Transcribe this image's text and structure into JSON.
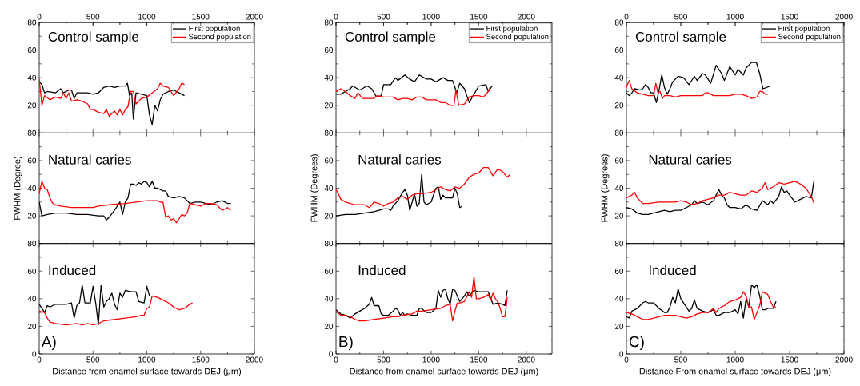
{
  "chart_data": [
    {
      "type": "line",
      "title": "Control sample",
      "xlim": [
        0,
        2000
      ],
      "xticks": [
        0,
        500,
        1000,
        1500,
        2000
      ],
      "x2lim": [
        0,
        2000
      ],
      "x2ticks": [
        0,
        500,
        1000,
        1500,
        2000
      ],
      "ylim": [
        0,
        80
      ],
      "yticks": [
        20,
        40,
        60,
        80
      ],
      "tick_labels": "y",
      "legend": "top right",
      "line_style": "solid",
      "series": [
        {
          "name": "First population",
          "color": "#000000",
          "x": [
            0,
            25,
            50,
            75,
            150,
            200,
            225,
            275,
            300,
            325,
            350,
            400,
            450,
            500,
            550,
            600,
            650,
            700,
            750,
            800,
            820,
            840,
            860,
            875,
            900,
            950,
            1000,
            1025,
            1050,
            1075,
            1100,
            1125,
            1150,
            1200,
            1250,
            1300,
            1350
          ],
          "values": [
            37,
            35,
            29,
            30,
            29,
            32,
            29,
            31,
            31,
            25,
            29,
            29,
            29,
            28,
            29,
            33,
            34,
            33,
            34,
            34,
            36,
            27,
            29,
            10,
            29,
            28,
            27,
            13,
            6,
            20,
            16,
            24,
            28,
            30,
            31,
            29,
            27
          ]
        },
        {
          "name": "Second population",
          "color": "#ff0000",
          "x": [
            0,
            25,
            50,
            100,
            150,
            200,
            225,
            250,
            275,
            300,
            350,
            400,
            450,
            475,
            500,
            550,
            600,
            625,
            650,
            700,
            725,
            750,
            775,
            800,
            825,
            850,
            875,
            900,
            925,
            950,
            1000,
            1050,
            1100,
            1125,
            1150,
            1200,
            1225,
            1250,
            1300,
            1325,
            1350
          ],
          "values": [
            39,
            20,
            27,
            24,
            26,
            25,
            29,
            25,
            29,
            23,
            24,
            23,
            21,
            17,
            17,
            15,
            14,
            17,
            12,
            16,
            13,
            17,
            13,
            17,
            19,
            30,
            30,
            21,
            23,
            25,
            26,
            29,
            32,
            36,
            34,
            33,
            30,
            27,
            32,
            36,
            35
          ]
        }
      ]
    },
    {
      "type": "line",
      "title": "Control sample",
      "xlim": [
        0,
        2270
      ],
      "xticks": [
        0,
        500,
        1000,
        1500,
        2000
      ],
      "x2lim": [
        0,
        2270
      ],
      "x2ticks": [
        0,
        500,
        1000,
        1500,
        2000
      ],
      "ylim": [
        0,
        80
      ],
      "yticks": [
        20,
        40,
        60,
        80
      ],
      "tick_labels": "y",
      "legend": "top right",
      "line_style": "solid",
      "series": [
        {
          "name": "First population",
          "color": "#000000",
          "x": [
            0,
            50,
            150,
            175,
            250,
            325,
            375,
            425,
            475,
            500,
            575,
            625,
            650,
            725,
            775,
            825,
            875,
            950,
            1000,
            1050,
            1125,
            1175,
            1225,
            1270,
            1300,
            1350,
            1400,
            1450,
            1500,
            1575,
            1600,
            1640
          ],
          "values": [
            28,
            28,
            32,
            34,
            31,
            34,
            32,
            26,
            27,
            35,
            35,
            40,
            38,
            42,
            39,
            37,
            42,
            39,
            39,
            37,
            40,
            38,
            38,
            29,
            36,
            32,
            22,
            28,
            34,
            35,
            30,
            34
          ]
        },
        {
          "name": "Second population",
          "color": "#ff0000",
          "x": [
            0,
            50,
            100,
            150,
            200,
            230,
            280,
            350,
            400,
            430,
            500,
            600,
            650,
            700,
            750,
            800,
            850,
            900,
            950,
            1000,
            1050,
            1100,
            1150,
            1200,
            1240,
            1260,
            1290,
            1350,
            1400,
            1450,
            1500,
            1550,
            1600,
            1620
          ],
          "values": [
            30,
            32,
            30,
            27,
            25,
            29,
            25,
            25,
            25,
            27,
            26,
            26,
            24,
            25,
            25,
            24,
            26,
            26,
            24,
            24,
            24,
            22,
            22,
            20,
            20,
            31,
            20,
            21,
            26,
            27,
            27,
            26,
            30,
            33
          ]
        }
      ]
    },
    {
      "type": "line",
      "title": "Control sample",
      "xlim": [
        0,
        2000
      ],
      "xticks": [
        0,
        500,
        1000,
        1500,
        2000
      ],
      "x2lim": [
        0,
        2000
      ],
      "x2ticks": [
        0,
        500,
        1000,
        1500,
        2000
      ],
      "ylim": [
        0,
        80
      ],
      "yticks": [
        20,
        40,
        60,
        80
      ],
      "tick_labels": "y",
      "legend": "top right",
      "line_style": "solid",
      "series": [
        {
          "name": "First population",
          "color": "#000000",
          "x": [
            0,
            25,
            50,
            75,
            125,
            150,
            175,
            200,
            225,
            250,
            275,
            300,
            325,
            350,
            375,
            400,
            425,
            475,
            525,
            575,
            625,
            650,
            700,
            725,
            775,
            825,
            875,
            900,
            950,
            1000,
            1025,
            1075,
            1100,
            1150,
            1195,
            1225,
            1255,
            1290,
            1320
          ],
          "values": [
            29,
            27,
            29,
            32,
            31,
            32,
            35,
            33,
            29,
            29,
            22,
            31,
            42,
            33,
            28,
            32,
            37,
            41,
            40,
            35,
            41,
            38,
            43,
            42,
            36,
            49,
            43,
            38,
            48,
            42,
            46,
            42,
            47,
            51,
            51,
            43,
            32,
            33,
            34
          ]
        },
        {
          "name": "Second population",
          "color": "#ff0000",
          "x": [
            0,
            25,
            50,
            100,
            150,
            200,
            250,
            270,
            290,
            310,
            330,
            350,
            400,
            450,
            500,
            600,
            700,
            725,
            750,
            800,
            850,
            900,
            950,
            1000,
            1050,
            1100,
            1150,
            1200,
            1225,
            1250,
            1275,
            1300
          ],
          "values": [
            33,
            38,
            32,
            29,
            28,
            27,
            27,
            36,
            29,
            30,
            25,
            27,
            27,
            26,
            27,
            27,
            27,
            29,
            29,
            27,
            27,
            27,
            27,
            28,
            28,
            27,
            25,
            26,
            30,
            30,
            28,
            28
          ]
        }
      ]
    },
    {
      "type": "line",
      "title": "Natural caries",
      "ylabel": "FWHM (Degree)",
      "xlim": [
        0,
        2000
      ],
      "xticks": [
        0,
        500,
        1000,
        1500,
        2000
      ],
      "ylim": [
        0,
        80
      ],
      "yticks": [
        20,
        40,
        60,
        80
      ],
      "tick_labels": "y",
      "line_style": "solid",
      "series": [
        {
          "color": "#000000",
          "x": [
            0,
            25,
            75,
            150,
            250,
            350,
            450,
            550,
            600,
            625,
            650,
            700,
            750,
            775,
            800,
            825,
            850,
            875,
            900,
            925,
            950,
            975,
            1000,
            1025,
            1050,
            1075,
            1100,
            1150,
            1175,
            1200,
            1250,
            1300,
            1350,
            1400,
            1450,
            1500,
            1550,
            1600,
            1650,
            1700,
            1750,
            1780
          ],
          "values": [
            30,
            20,
            21,
            22,
            22,
            21,
            21,
            20,
            20,
            17,
            19,
            24,
            30,
            21,
            30,
            33,
            43,
            43,
            42,
            44,
            43,
            45,
            44,
            41,
            45,
            40,
            40,
            38,
            38,
            34,
            33,
            34,
            33,
            29,
            30,
            30,
            29,
            28,
            30,
            31,
            29,
            29
          ]
        },
        {
          "color": "#ff0000",
          "x": [
            0,
            25,
            50,
            75,
            100,
            125,
            150,
            200,
            300,
            400,
            500,
            550,
            650,
            800,
            900,
            1000,
            1100,
            1125,
            1150,
            1175,
            1200,
            1225,
            1250,
            1275,
            1300,
            1325,
            1350,
            1375,
            1400,
            1450,
            1500,
            1550,
            1600,
            1650,
            1700,
            1750,
            1780
          ],
          "values": [
            36,
            45,
            40,
            39,
            33,
            29,
            28,
            27,
            26,
            26,
            26,
            27,
            28,
            29,
            30,
            31,
            31,
            30,
            30,
            19,
            20,
            17,
            18,
            15,
            18,
            21,
            20,
            22,
            29,
            28,
            27,
            29,
            29,
            28,
            24,
            26,
            24
          ]
        }
      ]
    },
    {
      "type": "line",
      "title": "Natural caries",
      "ylabel": "FWHM (Degrees)",
      "xlim": [
        0,
        2270
      ],
      "xticks": [
        0,
        500,
        1000,
        1500,
        2000
      ],
      "ylim": [
        0,
        80
      ],
      "yticks": [
        20,
        40,
        60,
        80
      ],
      "tick_labels": "y",
      "line_style": "solid",
      "series": [
        {
          "color": "#000000",
          "x": [
            0,
            100,
            200,
            300,
            400,
            500,
            550,
            575,
            600,
            650,
            700,
            725,
            750,
            775,
            800,
            825,
            850,
            875,
            900,
            925,
            950,
            1000,
            1050,
            1075,
            1100,
            1125,
            1150,
            1200,
            1225,
            1250,
            1275,
            1300,
            1325
          ],
          "values": [
            20,
            21,
            21,
            22,
            23,
            25,
            25,
            24,
            27,
            31,
            37,
            39,
            35,
            24,
            30,
            36,
            27,
            29,
            50,
            30,
            28,
            30,
            40,
            41,
            32,
            35,
            33,
            33,
            33,
            40,
            36,
            26,
            27
          ]
        },
        {
          "color": "#ff0000",
          "x": [
            0,
            25,
            50,
            100,
            200,
            300,
            350,
            400,
            450,
            500,
            550,
            600,
            650,
            700,
            750,
            800,
            850,
            900,
            1000,
            1100,
            1150,
            1200,
            1250,
            1300,
            1350,
            1400,
            1450,
            1500,
            1550,
            1600,
            1650,
            1700,
            1750,
            1800,
            1830
          ],
          "values": [
            39,
            36,
            32,
            30,
            28,
            28,
            26,
            30,
            29,
            27,
            29,
            30,
            33,
            34,
            32,
            35,
            36,
            36,
            37,
            41,
            39,
            38,
            41,
            40,
            43,
            48,
            50,
            51,
            55,
            55,
            49,
            54,
            52,
            48,
            50
          ]
        }
      ]
    },
    {
      "type": "line",
      "title": "Natural caries",
      "ylabel": "FWHM (Degrees)",
      "xlim": [
        0,
        2000
      ],
      "xticks": [
        0,
        500,
        1000,
        1500,
        2000
      ],
      "ylim": [
        0,
        80
      ],
      "yticks": [
        20,
        40,
        60,
        80
      ],
      "tick_labels": "y",
      "line_style": "solid",
      "series": [
        {
          "color": "#000000",
          "x": [
            0,
            50,
            100,
            150,
            200,
            250,
            300,
            350,
            400,
            450,
            500,
            550,
            600,
            625,
            650,
            700,
            750,
            800,
            825,
            850,
            875,
            900,
            925,
            950,
            1000,
            1050,
            1100,
            1150,
            1200,
            1250,
            1300,
            1325,
            1350,
            1400,
            1425,
            1450,
            1475,
            1500,
            1550,
            1600,
            1650,
            1700,
            1725
          ],
          "values": [
            26,
            25,
            22,
            21,
            21,
            22,
            23,
            24,
            23,
            24,
            24,
            26,
            28,
            31,
            29,
            30,
            28,
            31,
            35,
            39,
            35,
            33,
            28,
            26,
            26,
            25,
            28,
            25,
            24,
            31,
            28,
            31,
            29,
            34,
            41,
            37,
            38,
            35,
            30,
            32,
            34,
            33,
            46
          ]
        },
        {
          "color": "#ff0000",
          "x": [
            0,
            50,
            75,
            100,
            150,
            200,
            300,
            400,
            450,
            500,
            550,
            600,
            650,
            700,
            750,
            800,
            850,
            900,
            950,
            1000,
            1050,
            1100,
            1150,
            1200,
            1250,
            1275,
            1300,
            1350,
            1400,
            1450,
            1500,
            1550,
            1600,
            1650,
            1700,
            1725
          ],
          "values": [
            33,
            35,
            37,
            33,
            29,
            29,
            30,
            30,
            30,
            31,
            30,
            28,
            29,
            31,
            32,
            33,
            35,
            35,
            37,
            36,
            35,
            35,
            38,
            37,
            40,
            44,
            39,
            41,
            44,
            43,
            44,
            45,
            43,
            40,
            34,
            29
          ]
        }
      ]
    },
    {
      "type": "line",
      "title": "Induced",
      "xlabel": "Distance from enamel surface towards DEJ (μm)",
      "annotations": [
        "A)"
      ],
      "xlim": [
        0,
        2000
      ],
      "xticks": [
        0,
        500,
        1000,
        1500,
        2000
      ],
      "ylim": [
        0,
        80
      ],
      "yticks": [
        0,
        20,
        40,
        60,
        80
      ],
      "line_style": "solid",
      "series": [
        {
          "color": "#000000",
          "x": [
            0,
            25,
            50,
            75,
            100,
            150,
            250,
            300,
            325,
            350,
            375,
            400,
            425,
            475,
            500,
            525,
            550,
            575,
            600,
            625,
            650,
            675,
            700,
            725,
            750,
            775,
            800,
            850,
            900,
            925,
            975,
            1000,
            1025
          ],
          "values": [
            36,
            33,
            30,
            35,
            34,
            36,
            36,
            37,
            26,
            35,
            37,
            50,
            37,
            37,
            49,
            37,
            21,
            50,
            34,
            38,
            40,
            44,
            36,
            32,
            44,
            41,
            46,
            45,
            45,
            38,
            37,
            49,
            42
          ]
        },
        {
          "color": "#ff0000",
          "x": [
            0,
            50,
            75,
            100,
            150,
            250,
            350,
            400,
            450,
            500,
            550,
            600,
            700,
            800,
            900,
            950,
            975,
            1000,
            1025,
            1050,
            1100,
            1150,
            1200,
            1250,
            1300,
            1350,
            1400,
            1425
          ],
          "values": [
            31,
            30,
            26,
            23,
            22,
            21,
            22,
            21,
            22,
            21,
            22,
            24,
            25,
            26,
            27,
            28,
            28,
            33,
            34,
            42,
            41,
            39,
            37,
            34,
            32,
            33,
            36,
            37
          ]
        }
      ]
    },
    {
      "type": "line",
      "title": "Induced",
      "xlabel": "Distance from enamel surface towards DEJ (μm)",
      "annotations": [
        "B)"
      ],
      "xlim": [
        0,
        2270
      ],
      "xticks": [
        0,
        500,
        1000,
        1500,
        2000
      ],
      "ylim": [
        0,
        80
      ],
      "yticks": [
        0,
        20,
        40,
        60,
        80
      ],
      "line_style": "solid",
      "series": [
        {
          "color": "#000000",
          "x": [
            0,
            50,
            100,
            150,
            200,
            250,
            300,
            350,
            375,
            400,
            450,
            475,
            500,
            550,
            600,
            625,
            650,
            675,
            700,
            725,
            750,
            800,
            850,
            875,
            900,
            950,
            1000,
            1050,
            1075,
            1100,
            1125,
            1150,
            1175,
            1200,
            1225,
            1250,
            1300,
            1350,
            1375,
            1400,
            1450,
            1500,
            1550,
            1600,
            1650,
            1700,
            1750,
            1775,
            1800
          ],
          "values": [
            32,
            29,
            28,
            26,
            29,
            31,
            33,
            36,
            41,
            35,
            35,
            29,
            28,
            28,
            31,
            33,
            32,
            28,
            30,
            28,
            29,
            28,
            28,
            33,
            33,
            30,
            30,
            33,
            46,
            41,
            46,
            47,
            40,
            36,
            47,
            46,
            38,
            42,
            45,
            42,
            46,
            45,
            45,
            45,
            36,
            37,
            36,
            35,
            46
          ]
        },
        {
          "color": "#ff0000",
          "x": [
            0,
            50,
            100,
            150,
            200,
            250,
            300,
            400,
            500,
            600,
            650,
            700,
            800,
            850,
            900,
            1000,
            1100,
            1150,
            1200,
            1225,
            1250,
            1275,
            1300,
            1350,
            1400,
            1425,
            1450,
            1475,
            1500,
            1550,
            1600,
            1625,
            1650,
            1675,
            1700,
            1725,
            1750,
            1775,
            1800
          ],
          "values": [
            31,
            28,
            28,
            27,
            25,
            24,
            24,
            25,
            26,
            27,
            27,
            28,
            29,
            31,
            31,
            32,
            33,
            35,
            36,
            24,
            31,
            37,
            37,
            38,
            45,
            41,
            56,
            40,
            40,
            41,
            43,
            39,
            44,
            40,
            38,
            33,
            27,
            27,
            41
          ]
        }
      ]
    },
    {
      "type": "line",
      "title": "Induced",
      "xlabel": "Distance From enamel surface towards DEJ (μm)",
      "annotations": [
        "C)"
      ],
      "xlim": [
        0,
        2000
      ],
      "xticks": [
        0,
        500,
        1000,
        1500,
        2000
      ],
      "ylim": [
        0,
        80
      ],
      "yticks": [
        0,
        20,
        40,
        60,
        80
      ],
      "line_style": "solid",
      "series": [
        {
          "color": "#000000",
          "x": [
            0,
            25,
            50,
            100,
            150,
            175,
            200,
            250,
            275,
            300,
            350,
            375,
            400,
            425,
            450,
            475,
            500,
            525,
            550,
            575,
            600,
            625,
            650,
            700,
            750,
            800,
            825,
            850,
            900,
            950,
            1000,
            1025,
            1050,
            1075,
            1100,
            1125,
            1150,
            1175,
            1200,
            1225,
            1250,
            1275,
            1300,
            1350,
            1375
          ],
          "values": [
            27,
            26,
            31,
            33,
            37,
            38,
            37,
            37,
            35,
            33,
            30,
            30,
            34,
            41,
            37,
            47,
            40,
            37,
            34,
            31,
            33,
            39,
            33,
            31,
            30,
            32,
            28,
            28,
            30,
            30,
            32,
            29,
            38,
            26,
            40,
            34,
            50,
            48,
            50,
            42,
            32,
            32,
            33,
            33,
            38
          ]
        },
        {
          "color": "#ff0000",
          "x": [
            0,
            50,
            100,
            150,
            200,
            250,
            300,
            350,
            400,
            450,
            500,
            550,
            600,
            650,
            700,
            750,
            800,
            825,
            850,
            900,
            950,
            1000,
            1050,
            1075,
            1100,
            1125,
            1150,
            1175,
            1200,
            1225,
            1250,
            1275,
            1300,
            1325,
            1350,
            1375
          ],
          "values": [
            30,
            29,
            27,
            25,
            25,
            26,
            27,
            28,
            28,
            28,
            27,
            26,
            27,
            29,
            30,
            30,
            33,
            30,
            33,
            35,
            38,
            39,
            41,
            45,
            42,
            34,
            34,
            25,
            30,
            35,
            45,
            44,
            43,
            38,
            34,
            34
          ]
        }
      ]
    }
  ]
}
